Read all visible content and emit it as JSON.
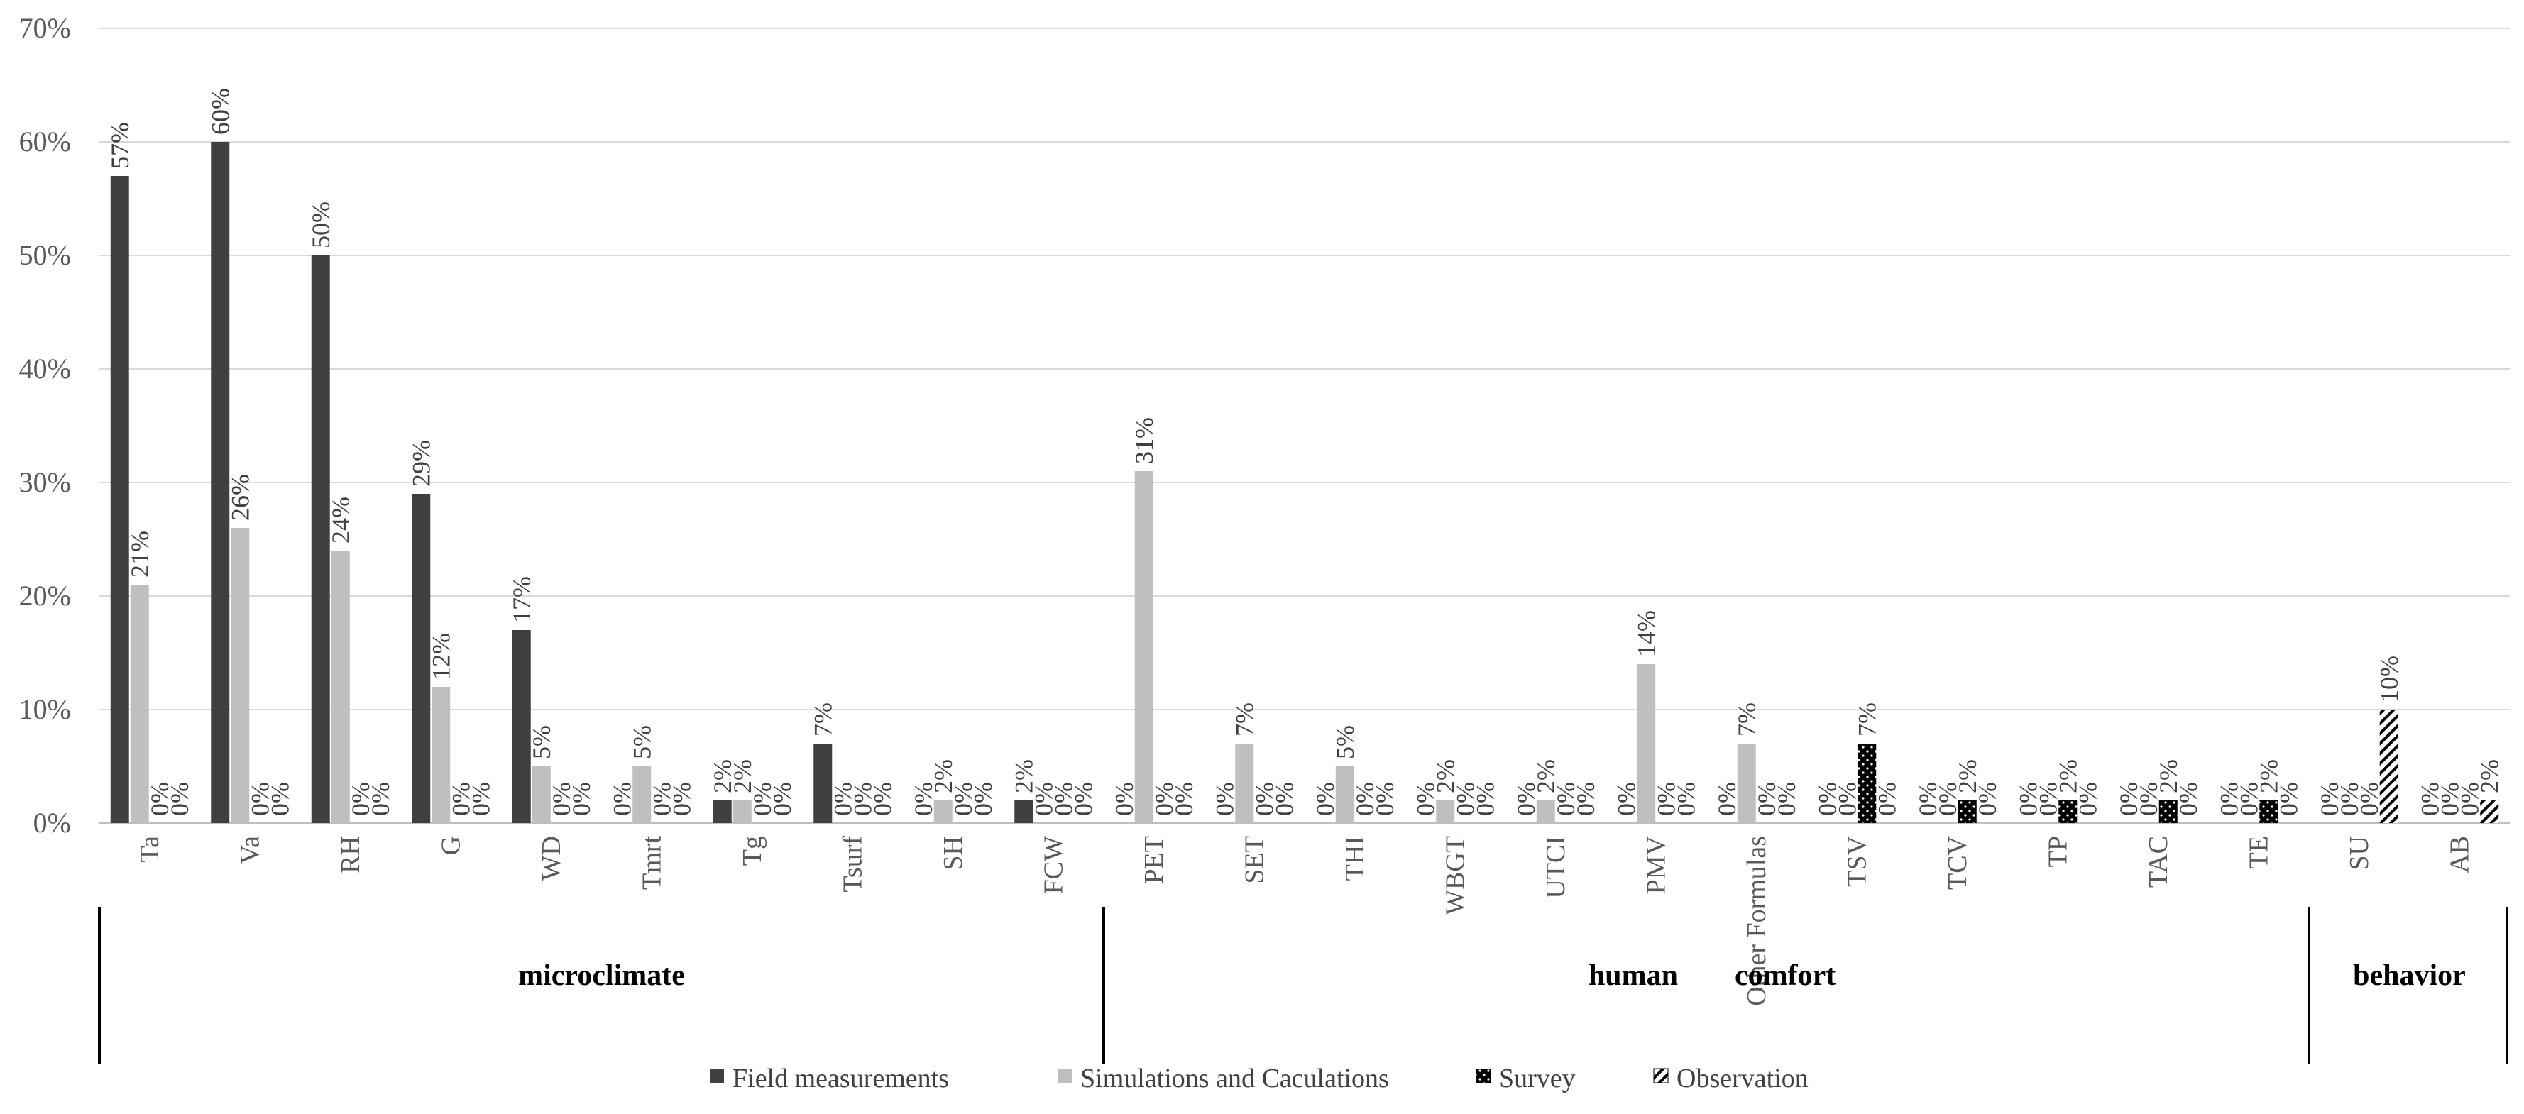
{
  "chart_data": {
    "type": "bar",
    "title": "",
    "xlabel": "",
    "ylabel": "",
    "ylim": [
      0,
      70
    ],
    "yticks": [
      "0%",
      "10%",
      "20%",
      "30%",
      "40%",
      "50%",
      "60%",
      "70%"
    ],
    "yunit": "%",
    "grid": true,
    "legend_position": "bottom",
    "categories": [
      "Ta",
      "Va",
      "RH",
      "G",
      "WD",
      "Tmrt",
      "Tg",
      "Tsurf",
      "SH",
      "FCW",
      "PET",
      "SET",
      "THI",
      "WBGT",
      "UTCI",
      "PMV",
      "Other Formulas",
      "TSV",
      "TCV",
      "TP",
      "TAC",
      "TE",
      "SU",
      "AB"
    ],
    "series": [
      {
        "name": "Field measurements",
        "color": "#404040",
        "pattern": "solid",
        "values": [
          57,
          60,
          50,
          29,
          17,
          0,
          2,
          7,
          0,
          2,
          0,
          0,
          0,
          0,
          0,
          0,
          0,
          0,
          0,
          0,
          0,
          0,
          0,
          0
        ],
        "labels": [
          "57%",
          "60%",
          "50%",
          "29%",
          "17%",
          "0%",
          "2%",
          "7%",
          "0%",
          "2%",
          "0%",
          "0%",
          "0%",
          "0%",
          "0%",
          "0%",
          "0%",
          "0%",
          "0%",
          "0%",
          "0%",
          "0%",
          "0%",
          "0%"
        ]
      },
      {
        "name": "Simulations and Caculations",
        "color": "#bfbfbf",
        "pattern": "solid",
        "values": [
          21,
          26,
          24,
          12,
          5,
          5,
          2,
          0,
          2,
          0,
          31,
          7,
          5,
          2,
          2,
          14,
          7,
          0,
          0,
          0,
          0,
          0,
          0,
          0
        ],
        "labels": [
          "21%",
          "26%",
          "24%",
          "12%",
          "5%",
          "5%",
          "2%",
          "0%",
          "2%",
          "0%",
          "31%",
          "7%",
          "5%",
          "2%",
          "2%",
          "14%",
          "7%",
          "0%",
          "0%",
          "0%",
          "0%",
          "0%",
          "0%",
          "0%"
        ]
      },
      {
        "name": "Survey",
        "color": "#000000",
        "pattern": "dots",
        "values": [
          0,
          0,
          0,
          0,
          0,
          0,
          0,
          0,
          0,
          0,
          0,
          0,
          0,
          0,
          0,
          0,
          0,
          7,
          2,
          2,
          2,
          2,
          0,
          0
        ],
        "labels": [
          "0%",
          "0%",
          "0%",
          "0%",
          "0%",
          "0%",
          "0%",
          "0%",
          "0%",
          "0%",
          "0%",
          "0%",
          "0%",
          "0%",
          "0%",
          "0%",
          "0%",
          "7%",
          "2%",
          "2%",
          "2%",
          "2%",
          "0%",
          "0%"
        ]
      },
      {
        "name": "Observation",
        "color": "#000000",
        "pattern": "hatch",
        "values": [
          0,
          0,
          0,
          0,
          0,
          0,
          0,
          0,
          0,
          0,
          0,
          0,
          0,
          0,
          0,
          0,
          0,
          0,
          0,
          0,
          0,
          0,
          10,
          2
        ],
        "labels": [
          "0%",
          "0%",
          "0%",
          "0%",
          "0%",
          "0%",
          "0%",
          "0%",
          "0%",
          "0%",
          "0%",
          "0%",
          "0%",
          "0%",
          "0%",
          "0%",
          "0%",
          "0%",
          "0%",
          "0%",
          "0%",
          "0%",
          "10%",
          "2%"
        ]
      }
    ],
    "groups": [
      {
        "label": "microclimate",
        "from": 0,
        "to": 9
      },
      {
        "label": "human",
        "label2": "comfort",
        "from": 10,
        "to": 21
      },
      {
        "label": "behavior",
        "from": 22,
        "to": 23
      }
    ]
  }
}
